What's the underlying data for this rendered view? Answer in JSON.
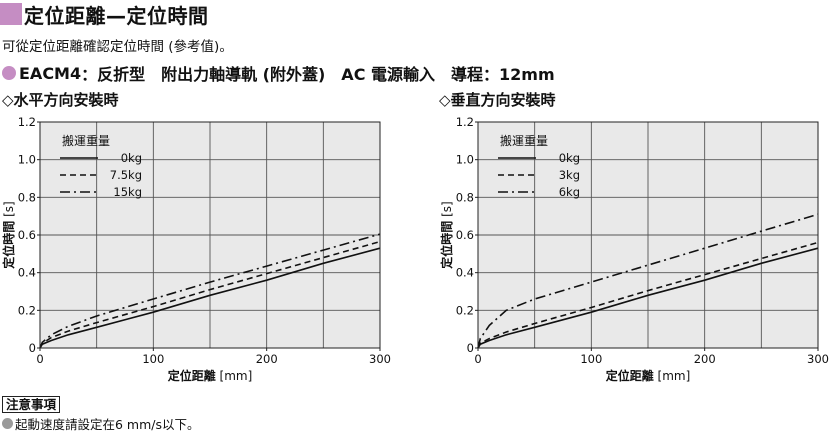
{
  "page": {
    "title": "定位距離—定位時間",
    "intro": "可從定位距離確認定位時間 (參考值)。",
    "model_code": "EACM4",
    "model_desc": "：反折型　附出力軸導軌 (附外蓋)　AC 電源輸入　導程：12mm",
    "notice_label": "注意事項",
    "notice_text": "起動速度請設定在6 mm/s以下。",
    "colors": {
      "accent": "#c58dc3",
      "plot_bg": "#e9e9e9",
      "note_dot": "#9a9a9a"
    }
  },
  "chart_data": [
    {
      "type": "line",
      "title": "◇水平方向安裝時",
      "xlabel": "定位距離",
      "xunit": "[mm]",
      "ylabel": "定位時間",
      "yunit": "[s]",
      "xlim": [
        0,
        300
      ],
      "ylim": [
        0,
        1.2
      ],
      "xticks": [
        0,
        100,
        200,
        300
      ],
      "yticks": [
        0,
        0.2,
        0.4,
        0.6,
        0.8,
        1.0,
        1.2
      ],
      "grid": true,
      "legend_title": "搬運重量",
      "legend_placement": "top-left",
      "x": [
        0,
        2,
        10,
        25,
        50,
        100,
        150,
        200,
        250,
        300
      ],
      "series": [
        {
          "name": "0kg",
          "dash": "solid",
          "values": [
            0,
            0.02,
            0.04,
            0.07,
            0.11,
            0.19,
            0.28,
            0.36,
            0.45,
            0.53
          ]
        },
        {
          "name": "7.5kg",
          "dash": "dashed",
          "values": [
            0,
            0.025,
            0.055,
            0.09,
            0.135,
            0.22,
            0.31,
            0.395,
            0.48,
            0.565
          ]
        },
        {
          "name": "15kg",
          "dash": "dashdot",
          "values": [
            0,
            0.03,
            0.07,
            0.115,
            0.17,
            0.26,
            0.35,
            0.435,
            0.52,
            0.605
          ]
        }
      ]
    },
    {
      "type": "line",
      "title": "◇垂直方向安裝時",
      "xlabel": "定位距離",
      "xunit": "[mm]",
      "ylabel": "定位時間",
      "yunit": "[s]",
      "xlim": [
        0,
        300
      ],
      "ylim": [
        0,
        1.2
      ],
      "xticks": [
        0,
        100,
        200,
        300
      ],
      "yticks": [
        0,
        0.2,
        0.4,
        0.6,
        0.8,
        1.0,
        1.2
      ],
      "grid": true,
      "legend_title": "搬運重量",
      "legend_placement": "top-left",
      "x": [
        0,
        2,
        10,
        25,
        50,
        100,
        150,
        200,
        250,
        300
      ],
      "series": [
        {
          "name": "0kg",
          "dash": "solid",
          "values": [
            0,
            0.02,
            0.04,
            0.07,
            0.11,
            0.19,
            0.28,
            0.36,
            0.45,
            0.53
          ]
        },
        {
          "name": "3kg",
          "dash": "dashed",
          "values": [
            0,
            0.025,
            0.05,
            0.085,
            0.13,
            0.215,
            0.305,
            0.39,
            0.475,
            0.56
          ]
        },
        {
          "name": "6kg",
          "dash": "dashdot",
          "values": [
            0,
            0.05,
            0.12,
            0.2,
            0.26,
            0.35,
            0.44,
            0.53,
            0.62,
            0.71
          ]
        }
      ]
    }
  ]
}
